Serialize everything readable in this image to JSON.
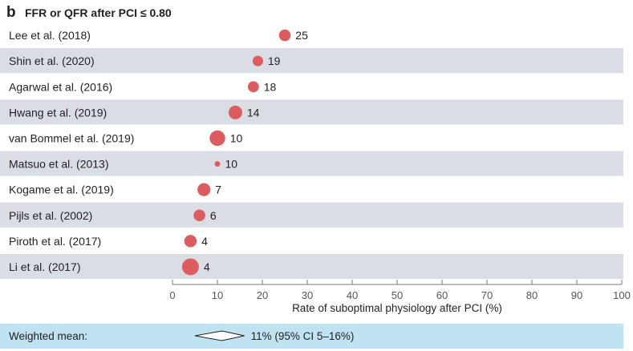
{
  "panel_letter": "b",
  "colors": {
    "marker": "#dd5c60",
    "band": "#dbdde4",
    "summary_band": "#bfe3f1",
    "axis": "#777777"
  },
  "chart_data": {
    "type": "scatter",
    "title": "FFR or QFR after PCI ≤ 0.80",
    "xlabel": "Rate of suboptimal physiology after PCI (%)",
    "xlim": [
      0,
      100
    ],
    "xticks": [
      0,
      10,
      20,
      30,
      40,
      50,
      60,
      70,
      80,
      90,
      100
    ],
    "grid": false,
    "studies": [
      {
        "label": "Lee et al. (2018)",
        "value": 25,
        "value_label": "25",
        "weight": 0.6
      },
      {
        "label": "Shin et al. (2020)",
        "value": 19,
        "value_label": "19",
        "weight": 0.5
      },
      {
        "label": "Agarwal et al. (2016)",
        "value": 18,
        "value_label": "18",
        "weight": 0.55
      },
      {
        "label": "Hwang et al. (2019)",
        "value": 14,
        "value_label": "14",
        "weight": 0.75
      },
      {
        "label": "van Bommel et al. (2019)",
        "value": 10,
        "value_label": "10",
        "weight": 0.9
      },
      {
        "label": "Matsuo et al. (2013)",
        "value": 10,
        "value_label": "10",
        "weight": 0.12
      },
      {
        "label": "Kogame et al. (2019)",
        "value": 7,
        "value_label": "7",
        "weight": 0.7
      },
      {
        "label": "Pijls et al. (2002)",
        "value": 6,
        "value_label": "6",
        "weight": 0.6
      },
      {
        "label": "Piroth et al. (2017)",
        "value": 4,
        "value_label": "4",
        "weight": 0.65
      },
      {
        "label": "Li et al. (2017)",
        "value": 4,
        "value_label": "4",
        "weight": 1.0
      }
    ],
    "summary": {
      "label": "Weighted mean:",
      "estimate": 11,
      "ci_low": 5,
      "ci_high": 16,
      "text": "11% (95% CI 5–16%)"
    }
  }
}
